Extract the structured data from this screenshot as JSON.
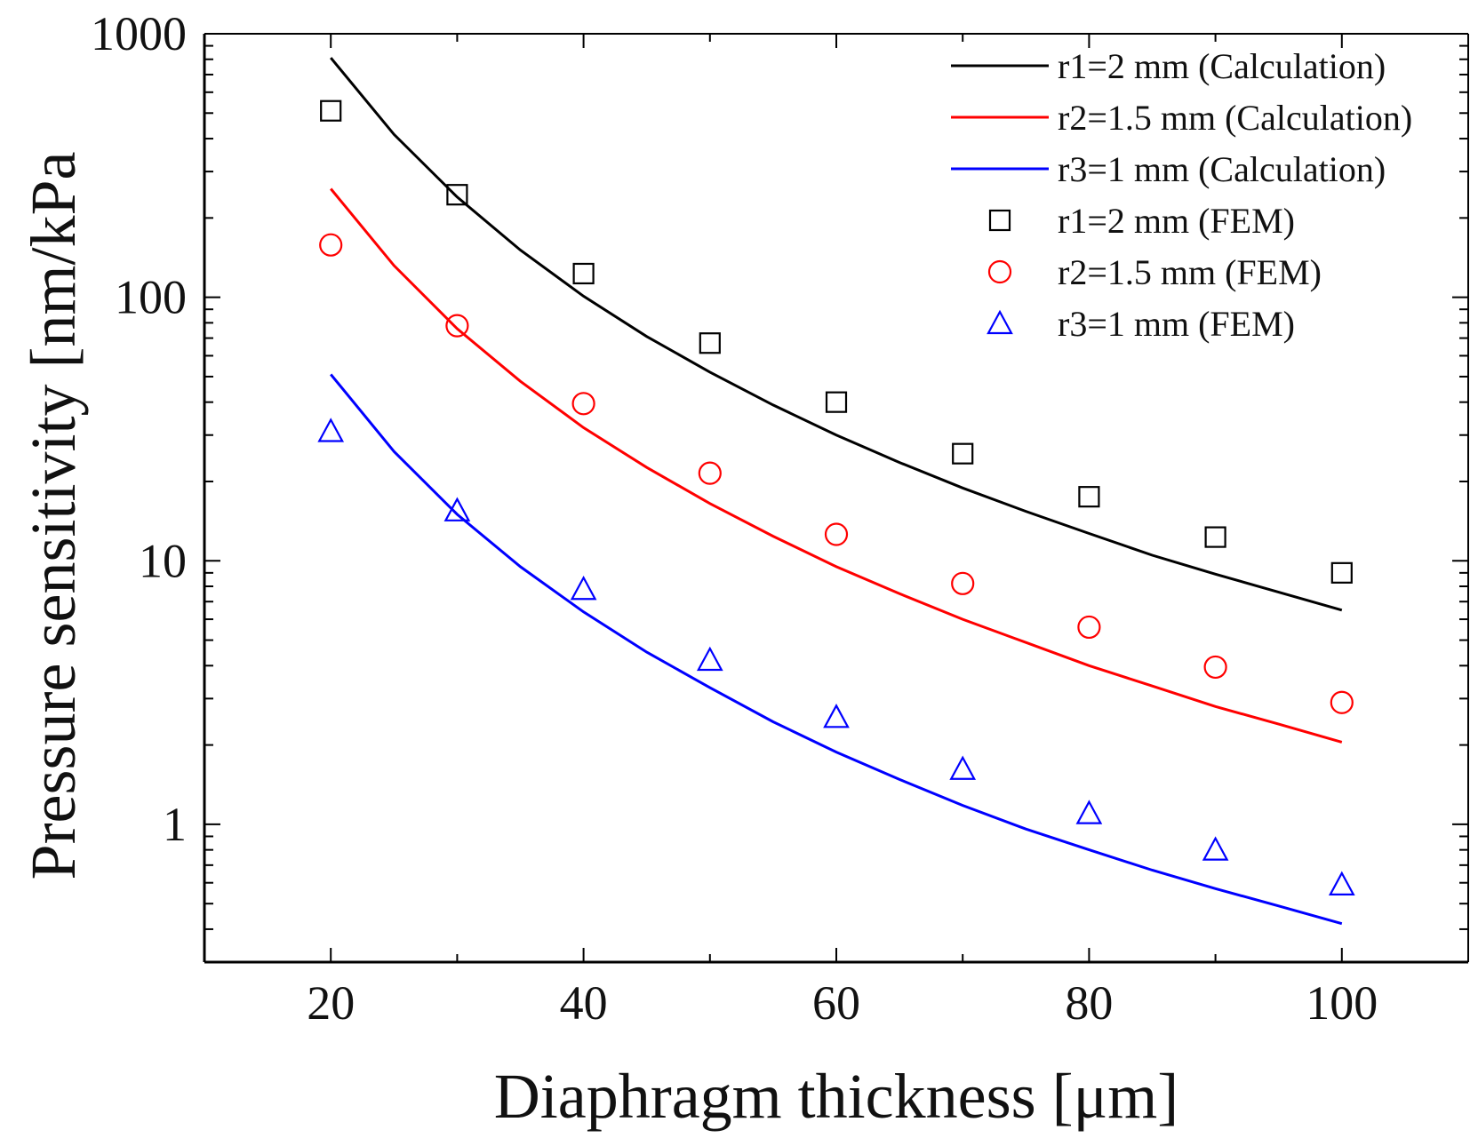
{
  "chart_data": {
    "type": "line",
    "title": "",
    "xlabel": "Diaphragm thickness [μm]",
    "ylabel": "Pressure sensitivity [nm/kPa",
    "x_scale": "linear",
    "y_scale": "log",
    "xlim": [
      10,
      110
    ],
    "ylim": [
      0.3,
      1000
    ],
    "x_ticks": [
      20,
      40,
      60,
      80,
      100
    ],
    "x_tick_labels": [
      "20",
      "40",
      "60",
      "80",
      "100"
    ],
    "y_ticks": [
      1,
      10,
      100,
      1000
    ],
    "y_tick_labels": [
      "1",
      "10",
      "100",
      "1000"
    ],
    "grid": false,
    "legend_position": "top-right",
    "series": [
      {
        "name": "r1=2 mm (Calculation)",
        "kind": "line",
        "color": "#000000",
        "x": [
          20,
          25,
          30,
          35,
          40,
          45,
          50,
          55,
          60,
          65,
          70,
          75,
          80,
          85,
          90,
          95,
          100
        ],
        "y": [
          810,
          415,
          240,
          151,
          101,
          71,
          52,
          39,
          30,
          23.6,
          18.9,
          15.4,
          12.7,
          10.5,
          8.9,
          7.6,
          6.5
        ]
      },
      {
        "name": "r2=1.5 mm (Calculation)",
        "kind": "line",
        "color": "#ff0000",
        "x": [
          20,
          25,
          30,
          35,
          40,
          45,
          50,
          55,
          60,
          65,
          70,
          75,
          80,
          85,
          90,
          95,
          100
        ],
        "y": [
          258,
          132,
          76,
          48,
          32,
          22.6,
          16.5,
          12.4,
          9.5,
          7.5,
          6.0,
          4.9,
          4.0,
          3.35,
          2.8,
          2.4,
          2.05
        ]
      },
      {
        "name": "r3=1 mm (Calculation)",
        "kind": "line",
        "color": "#0000ff",
        "x": [
          20,
          25,
          30,
          35,
          40,
          45,
          50,
          55,
          60,
          65,
          70,
          75,
          80,
          85,
          90,
          95,
          100
        ],
        "y": [
          51,
          26,
          15,
          9.5,
          6.4,
          4.5,
          3.3,
          2.45,
          1.88,
          1.48,
          1.18,
          0.96,
          0.8,
          0.67,
          0.57,
          0.49,
          0.42
        ]
      },
      {
        "name": "r1=2 mm (FEM)",
        "kind": "scatter",
        "marker": "square",
        "color": "#000000",
        "x": [
          20,
          30,
          40,
          50,
          60,
          70,
          80,
          90,
          100
        ],
        "y": [
          510,
          245,
          123,
          67,
          40,
          25.5,
          17.5,
          12.3,
          9.0
        ]
      },
      {
        "name": "r2=1.5 mm (FEM)",
        "kind": "scatter",
        "marker": "circle",
        "color": "#ff0000",
        "x": [
          20,
          30,
          40,
          50,
          60,
          70,
          80,
          90,
          100
        ],
        "y": [
          158,
          78,
          39.5,
          21.5,
          12.6,
          8.2,
          5.6,
          3.95,
          2.9
        ]
      },
      {
        "name": "r3=1 mm (FEM)",
        "kind": "scatter",
        "marker": "triangle",
        "color": "#0000ff",
        "x": [
          20,
          30,
          40,
          50,
          60,
          70,
          80,
          90,
          100
        ],
        "y": [
          31,
          15.5,
          7.8,
          4.2,
          2.55,
          1.62,
          1.1,
          0.8,
          0.59
        ]
      }
    ]
  }
}
